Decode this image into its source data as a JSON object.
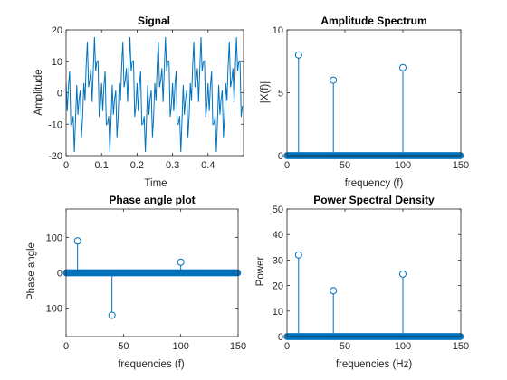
{
  "figure": {
    "line_color": "#0072BD",
    "axis_color": "#262626",
    "background": "#ffffff"
  },
  "chart_data": [
    {
      "type": "line",
      "title": "Signal",
      "xlabel": "Time",
      "ylabel": "Amplitude",
      "xlim": [
        0,
        0.5
      ],
      "ylim": [
        -20,
        20
      ],
      "xticks": [
        "0",
        "0.1",
        "0.2",
        "0.3",
        "0.4"
      ],
      "yticks": [
        "-20",
        "-10",
        "0",
        "10",
        "20"
      ],
      "series": [
        {
          "components": [
            {
              "amplitude": 8,
              "frequency_hz": 10,
              "phase_deg": 90
            },
            {
              "amplitude": 6,
              "frequency_hz": 40,
              "phase_deg": -120
            },
            {
              "amplitude": 7,
              "frequency_hz": 100,
              "phase_deg": 30
            }
          ],
          "sample_rate_hz": 300,
          "t_end": 0.4967
        }
      ]
    },
    {
      "type": "stem",
      "title": "Amplitude Spectrum",
      "xlabel": "frequency (f)",
      "ylabel": "|X(f)|",
      "xlim": [
        0,
        150
      ],
      "ylim": [
        0,
        10
      ],
      "xticks": [
        "0",
        "50",
        "100",
        "150"
      ],
      "yticks": [
        "0",
        "5",
        "10"
      ],
      "frequency_resolution": 0.6711,
      "frequency_max": 150,
      "peaks": [
        {
          "x": 10,
          "y": 8
        },
        {
          "x": 40,
          "y": 6
        },
        {
          "x": 100,
          "y": 7
        }
      ],
      "baseline_value": 0
    },
    {
      "type": "stem",
      "title": "Phase angle plot",
      "xlabel": "frequencies (f)",
      "ylabel": "Phase angle",
      "xlim": [
        0,
        150
      ],
      "ylim": [
        -180,
        180
      ],
      "xticks": [
        "0",
        "50",
        "100",
        "150"
      ],
      "yticks": [
        "-100",
        "0",
        "100"
      ],
      "frequency_resolution": 0.6711,
      "frequency_max": 150,
      "peaks": [
        {
          "x": 10,
          "y": 90
        },
        {
          "x": 40,
          "y": -120
        },
        {
          "x": 100,
          "y": 30
        }
      ],
      "baseline_value": 0
    },
    {
      "type": "stem",
      "title": "Power Spectral Density",
      "xlabel": "frequencies (Hz)",
      "ylabel": "Power",
      "xlim": [
        0,
        150
      ],
      "ylim": [
        0,
        50
      ],
      "xticks": [
        "0",
        "50",
        "100",
        "150"
      ],
      "yticks": [
        "0",
        "10",
        "20",
        "30",
        "40",
        "50"
      ],
      "frequency_resolution": 0.6711,
      "frequency_max": 150,
      "peaks": [
        {
          "x": 10,
          "y": 32
        },
        {
          "x": 40,
          "y": 18
        },
        {
          "x": 100,
          "y": 24.5
        }
      ],
      "baseline_value": 0
    }
  ]
}
